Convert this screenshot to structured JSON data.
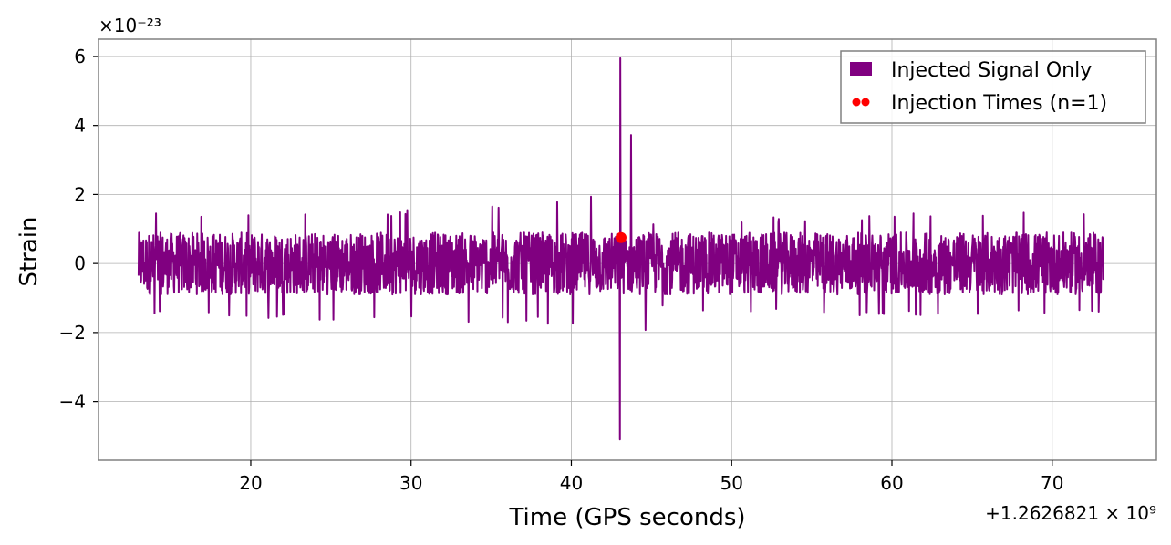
{
  "chart_data": {
    "type": "line",
    "title": "",
    "xlabel": "Time (GPS seconds)",
    "ylabel": "Strain",
    "x_offset_label": "+1.2626821 × 10⁹",
    "y_scale_label": "×10⁻²³",
    "xlim": [
      10.5,
      76.5
    ],
    "ylim": [
      -5.7,
      6.5
    ],
    "x_ticks": [
      {
        "value": 20,
        "label": "20"
      },
      {
        "value": 30,
        "label": "30"
      },
      {
        "value": 40,
        "label": "40"
      },
      {
        "value": 50,
        "label": "50"
      },
      {
        "value": 60,
        "label": "60"
      },
      {
        "value": 70,
        "label": "70"
      }
    ],
    "y_ticks": [
      {
        "value": -4,
        "label": "−4"
      },
      {
        "value": -2,
        "label": "−2"
      },
      {
        "value": 0,
        "label": "0"
      },
      {
        "value": 2,
        "label": "2"
      },
      {
        "value": 4,
        "label": "4"
      },
      {
        "value": 6,
        "label": "6"
      }
    ],
    "grid": true,
    "legend_position": "top-right",
    "series": [
      {
        "name": "Injected Signal Only",
        "kind": "line",
        "color": "#800080",
        "x_range": [
          13.0,
          73.2
        ],
        "typical_amplitude": 0.9,
        "peak_envelope": [
          {
            "x": 13.0,
            "max": 1.6,
            "min": -1.5
          },
          {
            "x": 20.0,
            "max": 1.4,
            "min": -1.7
          },
          {
            "x": 30.0,
            "max": 1.6,
            "min": -1.8
          },
          {
            "x": 40.0,
            "max": 2.1,
            "min": -1.8
          },
          {
            "x": 42.5,
            "max": 2.2,
            "min": -2.2
          },
          {
            "x": 43.05,
            "max": 5.95,
            "min": -5.1
          },
          {
            "x": 45.0,
            "max": 1.3,
            "min": -1.4
          },
          {
            "x": 55.0,
            "max": 1.4,
            "min": -1.5
          },
          {
            "x": 65.0,
            "max": 1.5,
            "min": -1.6
          },
          {
            "x": 73.2,
            "max": 1.5,
            "min": -1.4
          }
        ]
      },
      {
        "name": "Injection Times (n=1)",
        "kind": "scatter",
        "color": "#ff0000",
        "points": [
          {
            "x": 43.1,
            "y": 0.75
          }
        ]
      }
    ]
  }
}
